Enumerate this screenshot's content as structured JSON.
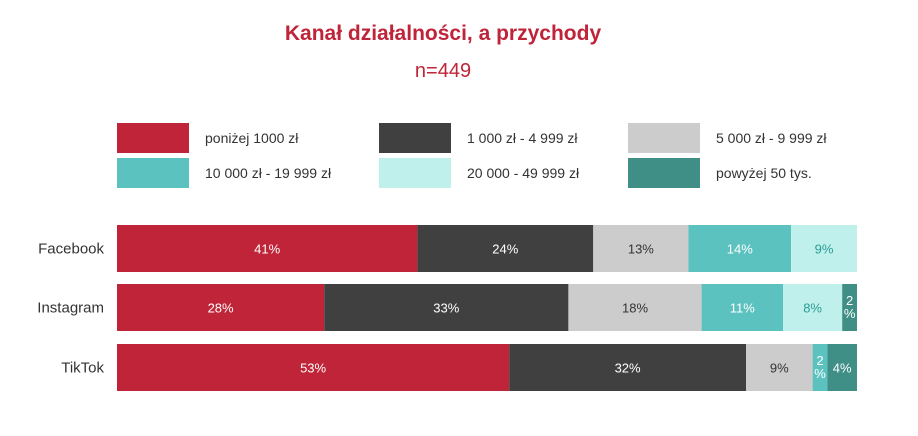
{
  "chart_data": {
    "type": "bar",
    "orientation": "horizontal",
    "stacked": true,
    "normalized": true,
    "title": "Kanał działalności, a przychody",
    "subtitle": "n=449",
    "categories": [
      "Facebook",
      "Instagram",
      "TikTok"
    ],
    "series": [
      {
        "name": "poniżej 1000 zł",
        "color": "#bf2439",
        "values": [
          41,
          28,
          53
        ],
        "labels": [
          "41%",
          "28%",
          "53%"
        ],
        "label_color": "#ffffff"
      },
      {
        "name": "1 000 zł - 4 999 zł",
        "color": "#404041",
        "values": [
          24,
          33,
          32
        ],
        "labels": [
          "24%",
          "33%",
          "32%"
        ],
        "label_color": "#ffffff"
      },
      {
        "name": "5 000 zł - 9 999 zł",
        "color": "#cccccc",
        "values": [
          13,
          18,
          9
        ],
        "labels": [
          "13%",
          "18%",
          "9%"
        ],
        "label_color": "#333333"
      },
      {
        "name": "10 000 zł - 19 999 zł",
        "color": "#5bc2bf",
        "values": [
          14,
          11,
          2
        ],
        "labels": [
          "14%",
          "11%",
          "2%"
        ],
        "label_color": "#ffffff"
      },
      {
        "name": "20 000 - 49 999 zł",
        "color": "#c0f0ec",
        "values": [
          9,
          8,
          0
        ],
        "labels": [
          "9%",
          "8%",
          ""
        ],
        "label_color": "#2a9d97"
      },
      {
        "name": "powyżej 50 tys.",
        "color": "#3f8f86",
        "values": [
          0,
          2,
          4
        ],
        "labels": [
          "",
          "2%",
          "4%"
        ],
        "label_color": "#ffffff"
      }
    ],
    "grid": false,
    "legend_position": "top"
  }
}
